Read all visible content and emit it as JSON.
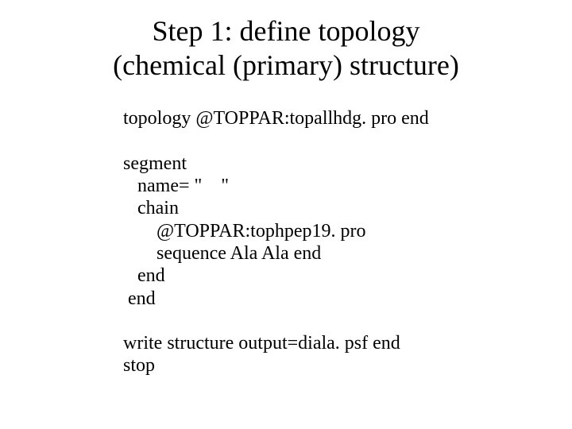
{
  "title_line1": "Step 1: define topology",
  "title_line2": "(chemical (primary) structure)",
  "code": {
    "l1": "topology @TOPPAR:topallhdg. pro end",
    "l2": "segment",
    "l3": "   name= \"    \"",
    "l4": "   chain",
    "l5": "       @TOPPAR:tophpep19. pro",
    "l6": "       sequence Ala Ala end",
    "l7": "   end",
    "l8": " end",
    "l9": "write structure output=diala. psf end",
    "l10": "stop"
  }
}
